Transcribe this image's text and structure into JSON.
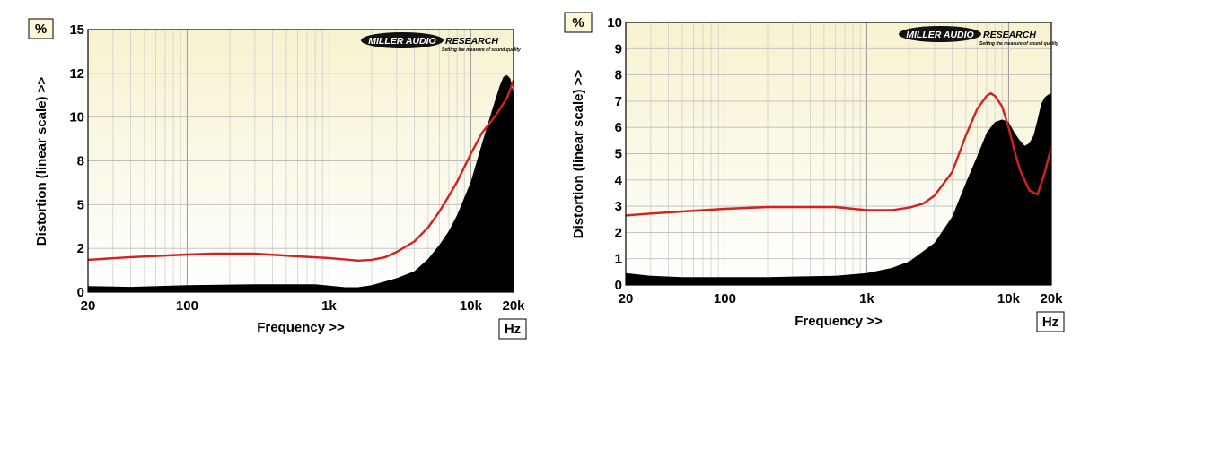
{
  "chart_data": [
    {
      "type": "line",
      "unit_label": "%",
      "hz_label": "Hz",
      "xlabel": "Frequency >>",
      "ylabel": "Distortion (linear scale) >>",
      "x_scale": "log",
      "xlim": [
        20,
        20000
      ],
      "ylim": [
        0,
        15
      ],
      "x_ticks": [
        {
          "value": 20,
          "label": "20"
        },
        {
          "value": 100,
          "label": "100"
        },
        {
          "value": 1000,
          "label": "1k"
        },
        {
          "value": 10000,
          "label": "10k"
        },
        {
          "value": 20000,
          "label": "20k"
        }
      ],
      "y_ticks": [
        {
          "value": 0,
          "label": "0"
        },
        {
          "value": 2.5,
          "label": "2"
        },
        {
          "value": 5,
          "label": "5"
        },
        {
          "value": 7.5,
          "label": "8"
        },
        {
          "value": 10,
          "label": "10"
        },
        {
          "value": 12.5,
          "label": "12"
        },
        {
          "value": 15,
          "label": "15"
        }
      ],
      "logo": {
        "brand_left": "MILLER AUDIO",
        "brand_right": "RESEARCH",
        "tagline": "Setting the measure of sound quality"
      },
      "series": [
        {
          "style": "filled-area",
          "color": "#000000",
          "x": [
            20,
            40,
            100,
            300,
            800,
            1300,
            1600,
            2000,
            3000,
            4000,
            5000,
            6000,
            7000,
            8000,
            10000,
            12000,
            14000,
            16000,
            17000,
            18000,
            19000,
            20000
          ],
          "y": [
            0.35,
            0.3,
            0.4,
            0.45,
            0.45,
            0.28,
            0.28,
            0.4,
            0.8,
            1.2,
            1.9,
            2.7,
            3.5,
            4.4,
            6.3,
            8.5,
            10.3,
            11.8,
            12.3,
            12.4,
            12.2,
            11.3
          ]
        },
        {
          "style": "line",
          "color": "#d42020",
          "x": [
            20,
            40,
            100,
            150,
            300,
            600,
            1000,
            1600,
            2000,
            2500,
            3000,
            4000,
            5000,
            6000,
            7000,
            8000,
            10000,
            12000,
            15000,
            18000,
            20000
          ],
          "y": [
            1.85,
            2.0,
            2.15,
            2.2,
            2.2,
            2.05,
            1.95,
            1.8,
            1.85,
            2.0,
            2.3,
            2.9,
            3.7,
            4.6,
            5.5,
            6.3,
            7.9,
            9.1,
            10.1,
            11.1,
            12.1
          ]
        }
      ]
    },
    {
      "type": "line",
      "unit_label": "%",
      "hz_label": "Hz",
      "xlabel": "Frequency >>",
      "ylabel": "Distortion (linear scale) >>",
      "x_scale": "log",
      "xlim": [
        20,
        20000
      ],
      "ylim": [
        0,
        10
      ],
      "x_ticks": [
        {
          "value": 20,
          "label": "20"
        },
        {
          "value": 100,
          "label": "100"
        },
        {
          "value": 1000,
          "label": "1k"
        },
        {
          "value": 10000,
          "label": "10k"
        },
        {
          "value": 20000,
          "label": "20k"
        }
      ],
      "y_ticks": [
        {
          "value": 0,
          "label": "0"
        },
        {
          "value": 1,
          "label": "1"
        },
        {
          "value": 2,
          "label": "2"
        },
        {
          "value": 3,
          "label": "3"
        },
        {
          "value": 4,
          "label": "4"
        },
        {
          "value": 5,
          "label": "5"
        },
        {
          "value": 6,
          "label": "6"
        },
        {
          "value": 7,
          "label": "7"
        },
        {
          "value": 8,
          "label": "8"
        },
        {
          "value": 9,
          "label": "9"
        },
        {
          "value": 10,
          "label": "10"
        }
      ],
      "logo": {
        "brand_left": "MILLER AUDIO",
        "brand_right": "RESEARCH",
        "tagline": "Setting the measure of sound quality"
      },
      "series": [
        {
          "style": "filled-area",
          "color": "#000000",
          "x": [
            20,
            30,
            50,
            100,
            200,
            600,
            1000,
            1500,
            2000,
            3000,
            4000,
            5000,
            6000,
            7000,
            8000,
            9000,
            10000,
            11000,
            12000,
            13000,
            14000,
            15000,
            16000,
            17000,
            18000,
            19000,
            20000
          ],
          "y": [
            0.45,
            0.35,
            0.3,
            0.3,
            0.3,
            0.35,
            0.45,
            0.65,
            0.9,
            1.6,
            2.6,
            3.9,
            4.9,
            5.8,
            6.2,
            6.3,
            6.2,
            5.8,
            5.5,
            5.3,
            5.4,
            5.7,
            6.3,
            6.9,
            7.15,
            7.25,
            7.3
          ]
        },
        {
          "style": "line",
          "color": "#d42020",
          "x": [
            20,
            30,
            50,
            100,
            200,
            600,
            1000,
            1500,
            2000,
            2500,
            3000,
            4000,
            5000,
            6000,
            7000,
            7500,
            8000,
            9000,
            10000,
            11000,
            12000,
            14000,
            16000,
            18000,
            20000
          ],
          "y": [
            2.65,
            2.72,
            2.8,
            2.9,
            2.97,
            2.97,
            2.85,
            2.85,
            2.95,
            3.1,
            3.4,
            4.3,
            5.7,
            6.7,
            7.2,
            7.3,
            7.2,
            6.8,
            6.0,
            5.1,
            4.4,
            3.6,
            3.45,
            4.3,
            5.25
          ]
        }
      ]
    }
  ]
}
